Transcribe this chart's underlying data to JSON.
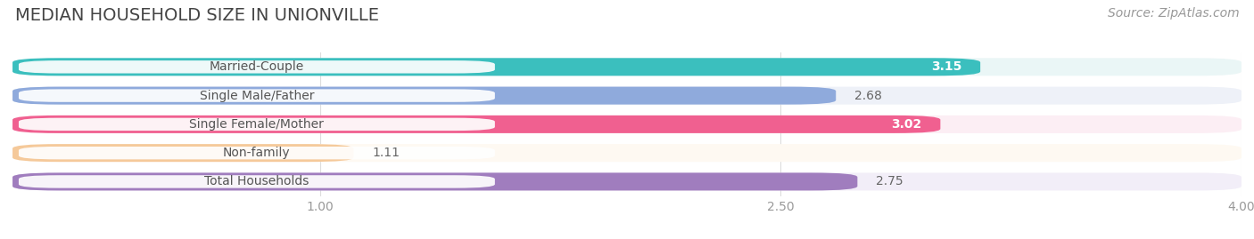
{
  "title": "MEDIAN HOUSEHOLD SIZE IN UNIONVILLE",
  "source": "Source: ZipAtlas.com",
  "categories": [
    "Married-Couple",
    "Single Male/Father",
    "Single Female/Mother",
    "Non-family",
    "Total Households"
  ],
  "values": [
    3.15,
    2.68,
    3.02,
    1.11,
    2.75
  ],
  "bar_colors": [
    "#3bbfbe",
    "#8faadc",
    "#f06090",
    "#f5c99a",
    "#a07dbe"
  ],
  "bar_bg_colors": [
    "#eaf6f6",
    "#eef1f8",
    "#fceef4",
    "#fef9f2",
    "#f2eef8"
  ],
  "row_bg_color": "#f0f0f0",
  "xlim": [
    0.0,
    4.0
  ],
  "xstart": 0.0,
  "xticks": [
    1.0,
    2.5,
    4.0
  ],
  "value_label_inside": [
    true,
    false,
    true,
    false,
    false
  ],
  "title_fontsize": 14,
  "source_fontsize": 10,
  "label_fontsize": 10,
  "value_fontsize": 10,
  "tick_fontsize": 10,
  "bar_height": 0.62,
  "background_color": "#ffffff",
  "label_text_color": "#555555",
  "value_color_inside": "#ffffff",
  "value_color_outside": "#666666",
  "tick_color": "#999999",
  "grid_color": "#dddddd",
  "title_color": "#444444",
  "source_color": "#999999"
}
